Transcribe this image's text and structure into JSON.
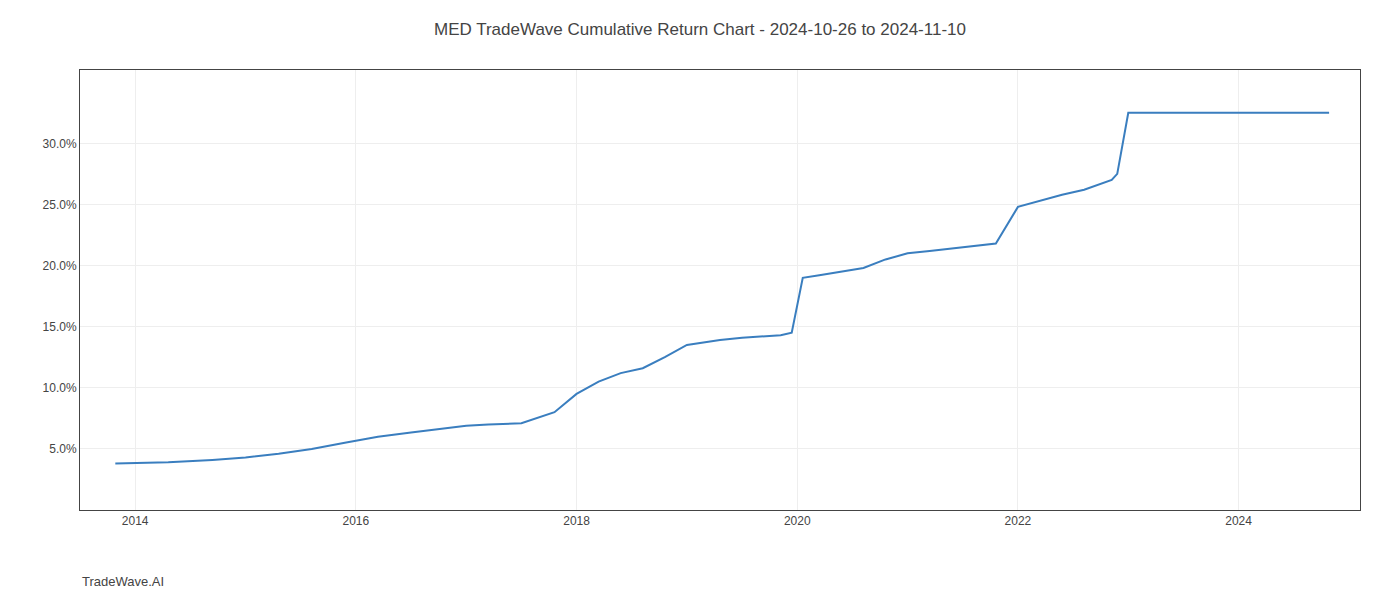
{
  "chart_data": {
    "type": "line",
    "title": "MED TradeWave Cumulative Return Chart - 2024-10-26 to 2024-11-10",
    "annotations": [
      "TradeWave.AI"
    ],
    "x": [
      2013.82,
      2014.0,
      2014.3,
      2014.7,
      2015.0,
      2015.3,
      2015.6,
      2015.9,
      2016.2,
      2016.5,
      2016.8,
      2017.0,
      2017.2,
      2017.5,
      2017.8,
      2018.0,
      2018.2,
      2018.4,
      2018.6,
      2018.8,
      2019.0,
      2019.15,
      2019.3,
      2019.5,
      2019.7,
      2019.85,
      2019.95,
      2020.05,
      2020.2,
      2020.4,
      2020.6,
      2020.8,
      2021.0,
      2021.2,
      2021.5,
      2021.8,
      2022.0,
      2022.2,
      2022.4,
      2022.6,
      2022.8,
      2022.85,
      2022.9,
      2023.0,
      2023.2,
      2023.4,
      2023.6,
      2023.8,
      2024.0,
      2024.3,
      2024.82
    ],
    "values": [
      3.8,
      3.82,
      3.9,
      4.1,
      4.3,
      4.6,
      5.0,
      5.5,
      6.0,
      6.35,
      6.65,
      6.9,
      7.0,
      7.1,
      8.0,
      9.5,
      10.5,
      11.2,
      11.6,
      12.5,
      13.5,
      13.7,
      13.9,
      14.1,
      14.2,
      14.3,
      14.5,
      19.0,
      19.2,
      19.5,
      19.8,
      20.5,
      21.0,
      21.2,
      21.5,
      21.8,
      24.8,
      25.3,
      25.8,
      26.2,
      26.8,
      27.0,
      27.5,
      32.5,
      32.5,
      32.5,
      32.5,
      32.5,
      32.5,
      32.5,
      32.5
    ],
    "color": "#3a7ebf",
    "xlim": [
      2013.5,
      2025.1
    ],
    "xticks": [
      2014,
      2016,
      2018,
      2020,
      2022,
      2024
    ],
    "ylim": [
      0,
      36
    ],
    "yticks": [
      {
        "value": 5.0,
        "label": "5.0%"
      },
      {
        "value": 10.0,
        "label": "10.0%"
      },
      {
        "value": 15.0,
        "label": "15.0%"
      },
      {
        "value": 20.0,
        "label": "20.0%"
      },
      {
        "value": 25.0,
        "label": "25.0%"
      },
      {
        "value": 30.0,
        "label": "30.0%"
      }
    ],
    "grid": true
  }
}
